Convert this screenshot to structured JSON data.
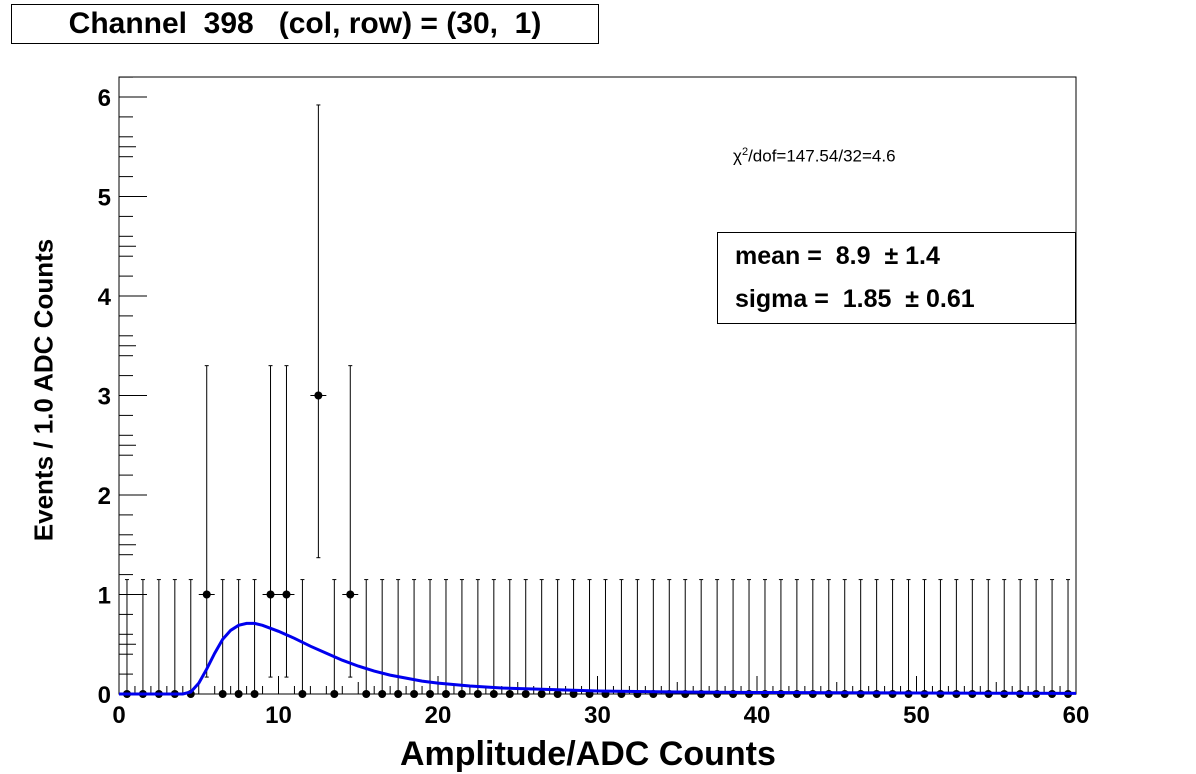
{
  "title": "Channel  398   (col, row) = (30,  1)",
  "stats": {
    "mean_label": "mean =",
    "mean_value": "8.9",
    "mean_error": "± 1.4",
    "sigma_label": "sigma =",
    "sigma_value": "1.85",
    "sigma_error": "± 0.61"
  },
  "fit_quality": {
    "chi": "χ",
    "sup": "2",
    "rest": "/dof=147.54/32=4.6"
  },
  "colors": {
    "fit": "#0000ee",
    "points": "#000000"
  },
  "chart_data": {
    "type": "scatter",
    "title": "Channel  398   (col, row) = (30,  1)",
    "xlabel": "Amplitude/ADC Counts",
    "ylabel": "Events / 1.0 ADC Counts",
    "xlim": [
      0,
      60
    ],
    "ylim": [
      0,
      6.2
    ],
    "x_ticks": [
      0,
      10,
      20,
      30,
      40,
      50,
      60
    ],
    "y_ticks": [
      0,
      1,
      2,
      3,
      4,
      5,
      6
    ],
    "grid": false,
    "series": [
      {
        "x": [
          0.5,
          1.5,
          2.5,
          3.5,
          4.5,
          5.5,
          6.5,
          7.5,
          8.5,
          9.5,
          10.5,
          11.5,
          12.5,
          13.5,
          14.5,
          15.5,
          16.5,
          17.5,
          18.5,
          19.5,
          20.5,
          21.5,
          22.5,
          23.5,
          24.5,
          25.5,
          26.5,
          27.5,
          28.5,
          29.5,
          30.5,
          31.5,
          32.5,
          33.5,
          34.5,
          35.5,
          36.5,
          37.5,
          38.5,
          39.5,
          40.5,
          41.5,
          42.5,
          43.5,
          44.5,
          45.5,
          46.5,
          47.5,
          48.5,
          49.5,
          50.5,
          51.5,
          52.5,
          53.5,
          54.5,
          55.5,
          56.5,
          57.5,
          58.5,
          59.5
        ],
        "y": [
          0,
          0,
          0,
          0,
          0,
          1,
          0,
          0,
          0,
          1,
          1,
          0,
          3,
          0,
          1,
          0,
          0,
          0,
          0,
          0,
          0,
          0,
          0,
          0,
          0,
          0,
          0,
          0,
          0,
          0,
          0,
          0,
          0,
          0,
          0,
          0,
          0,
          0,
          0,
          0,
          0,
          0,
          0,
          0,
          0,
          0,
          0,
          0,
          0,
          0,
          0,
          0,
          0,
          0,
          0,
          0,
          0,
          0,
          0,
          0
        ],
        "err_low": [
          0,
          0,
          0,
          0,
          0,
          0.83,
          0,
          0,
          0,
          0.83,
          0.83,
          0,
          1.63,
          0,
          0.83,
          0,
          0,
          0,
          0,
          0,
          0,
          0,
          0,
          0,
          0,
          0,
          0,
          0,
          0,
          0,
          0,
          0,
          0,
          0,
          0,
          0,
          0,
          0,
          0,
          0,
          0,
          0,
          0,
          0,
          0,
          0,
          0,
          0,
          0,
          0,
          0,
          0,
          0,
          0,
          0,
          0,
          0,
          0,
          0,
          0
        ],
        "err_high": [
          1.15,
          1.15,
          1.15,
          1.15,
          1.15,
          2.3,
          1.15,
          1.15,
          1.15,
          2.3,
          2.3,
          1.15,
          2.92,
          1.15,
          2.3,
          1.15,
          1.15,
          1.15,
          1.15,
          1.15,
          1.15,
          1.15,
          1.15,
          1.15,
          1.15,
          1.15,
          1.15,
          1.15,
          1.15,
          1.15,
          1.15,
          1.15,
          1.15,
          1.15,
          1.15,
          1.15,
          1.15,
          1.15,
          1.15,
          1.15,
          1.15,
          1.15,
          1.15,
          1.15,
          1.15,
          1.15,
          1.15,
          1.15,
          1.15,
          1.15,
          1.15,
          1.15,
          1.15,
          1.15,
          1.15,
          1.15,
          1.15,
          1.15,
          1.15,
          1.15
        ]
      }
    ],
    "fit": {
      "x": [
        0,
        4,
        4.5,
        5,
        5.5,
        6,
        6.5,
        7,
        7.5,
        8,
        8.5,
        9,
        9.5,
        10,
        11,
        12,
        13,
        14,
        15,
        16,
        17,
        18,
        19,
        20,
        22,
        24,
        26,
        28,
        30,
        35,
        40,
        45,
        50,
        55,
        60
      ],
      "y": [
        0,
        0,
        0.02,
        0.11,
        0.25,
        0.41,
        0.55,
        0.64,
        0.69,
        0.71,
        0.71,
        0.69,
        0.66,
        0.63,
        0.56,
        0.48,
        0.41,
        0.34,
        0.28,
        0.23,
        0.19,
        0.16,
        0.13,
        0.11,
        0.08,
        0.06,
        0.05,
        0.04,
        0.03,
        0.02,
        0.015,
        0.012,
        0.01,
        0.008,
        0.006
      ]
    }
  }
}
